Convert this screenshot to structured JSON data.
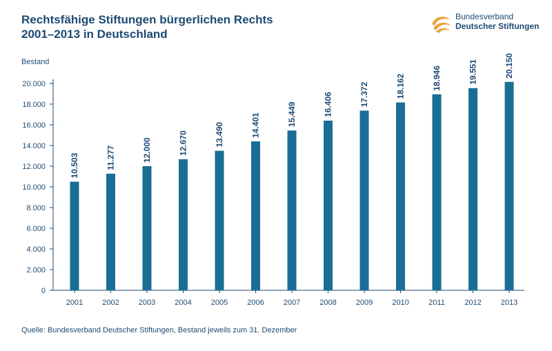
{
  "header": {
    "title_line1": "Rechtsfähige Stiftungen bürgerlichen Rechts",
    "title_line2": "2001–2013 in Deutschland"
  },
  "logo": {
    "line1": "Bundesverband",
    "line2": "Deutscher Stiftungen",
    "icon": "swirl-logo-icon",
    "color": "#e8a23a"
  },
  "colors": {
    "bar": "#1a6e96",
    "text": "#1d4a73",
    "axis": "#1d4a73"
  },
  "chart_data": {
    "type": "bar",
    "title": "Rechtsfähige Stiftungen bürgerlichen Rechts 2001–2013 in Deutschland",
    "ylabel": "Bestand",
    "xlabel": "",
    "categories": [
      "2001",
      "2002",
      "2003",
      "2004",
      "2005",
      "2006",
      "2007",
      "2008",
      "2009",
      "2010",
      "2011",
      "2012",
      "2013"
    ],
    "values": [
      10503,
      11277,
      12000,
      12670,
      13490,
      14401,
      15449,
      16406,
      17372,
      18162,
      18946,
      19551,
      20150
    ],
    "value_labels": [
      "10.503",
      "11.277",
      "12.000",
      "12.670",
      "13.490",
      "14.401",
      "15.449",
      "16.406",
      "17.372",
      "18.162",
      "18.946",
      "19.551",
      "20.150"
    ],
    "yticks": [
      0,
      2000,
      4000,
      6000,
      8000,
      10000,
      12000,
      14000,
      16000,
      18000,
      20000
    ],
    "ytick_labels": [
      "0",
      "2.000",
      "4.000",
      "6.000",
      "8.000",
      "10.000",
      "12.000",
      "14.000",
      "16.000",
      "18.000",
      "20.000"
    ],
    "ylim": [
      0,
      20000
    ],
    "grid": false,
    "legend": "none"
  },
  "footer": {
    "source": "Quelle: Bundesverband Deutscher Stiftungen, Bestand jeweils zum 31. Dezember"
  }
}
